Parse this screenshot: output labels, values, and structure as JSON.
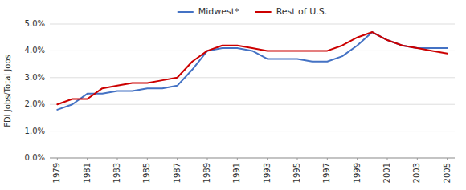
{
  "chart_data": {
    "type": "line",
    "y_label": "FDI Jobs/Total Jobs",
    "x": [
      1979,
      1980,
      1981,
      1982,
      1983,
      1984,
      1985,
      1986,
      1987,
      1988,
      1989,
      1990,
      1991,
      1992,
      1993,
      1994,
      1995,
      1996,
      1997,
      1998,
      1999,
      2000,
      2001,
      2002,
      2003,
      2004,
      2005
    ],
    "series": [
      {
        "name": "Midwest*",
        "color": "#4472C4",
        "values": [
          0.018,
          0.02,
          0.024,
          0.024,
          0.025,
          0.025,
          0.026,
          0.026,
          0.027,
          0.033,
          0.04,
          0.041,
          0.041,
          0.04,
          0.037,
          0.037,
          0.037,
          0.036,
          0.036,
          0.038,
          0.042,
          0.047,
          0.044,
          0.042,
          0.041,
          0.041,
          0.041
        ]
      },
      {
        "name": "Rest of U.S.",
        "color": "#CC0000",
        "values": [
          0.02,
          0.022,
          0.022,
          0.026,
          0.027,
          0.028,
          0.028,
          0.029,
          0.03,
          0.036,
          0.04,
          0.042,
          0.042,
          0.041,
          0.04,
          0.04,
          0.04,
          0.04,
          0.04,
          0.042,
          0.045,
          0.047,
          0.044,
          0.042,
          0.041,
          0.04,
          0.039
        ]
      }
    ],
    "xlim": [
      1978.5,
      2005.5
    ],
    "xticks": [
      1979,
      1981,
      1983,
      1985,
      1987,
      1989,
      1991,
      1993,
      1995,
      1997,
      1999,
      2001,
      2003,
      2005
    ],
    "ylim": [
      0.0,
      0.05
    ],
    "yticks": [
      {
        "value": 0.0,
        "label": "0.0%"
      },
      {
        "value": 0.01,
        "label": "1.0%"
      },
      {
        "value": 0.02,
        "label": "2.0%"
      },
      {
        "value": 0.03,
        "label": "3.0%"
      },
      {
        "value": 0.04,
        "label": "4.0%"
      },
      {
        "value": 0.05,
        "label": "5.0%"
      }
    ],
    "grid": true,
    "legend": "top"
  }
}
